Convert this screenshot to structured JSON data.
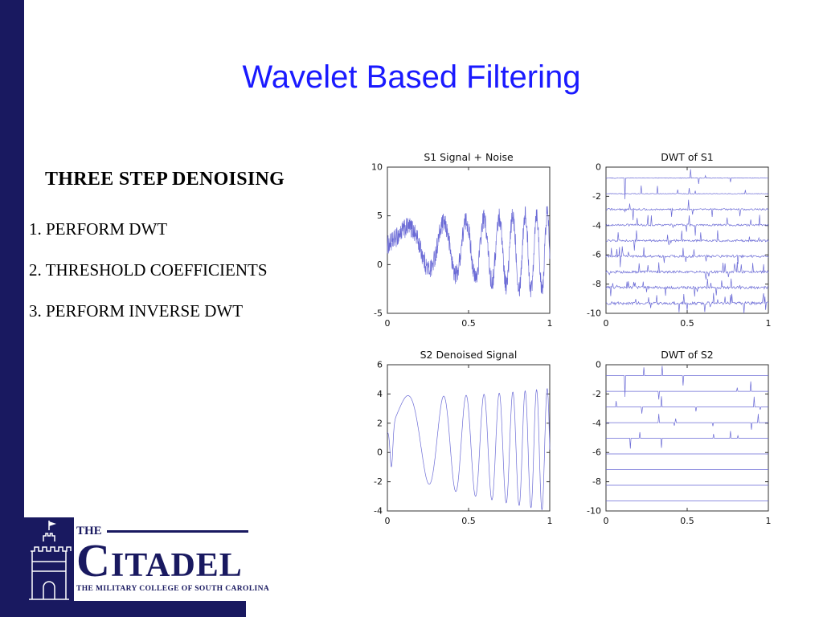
{
  "slide": {
    "title": "Wavelet Based Filtering"
  },
  "content": {
    "heading": "THREE STEP DENOISING",
    "steps": [
      "1. PERFORM  DWT",
      "2. THRESHOLD COEFFICIENTS",
      "3. PERFORM INVERSE DWT"
    ]
  },
  "logo": {
    "the": "THE",
    "name_initial": "C",
    "name_rest": "ITADEL",
    "tagline": "THE MILITARY COLLEGE OF SOUTH CAROLINA"
  },
  "colors": {
    "title_blue": "#1a1aff",
    "navy": "#191960",
    "plot_line": "#6b6bd6",
    "axis": "#333333"
  },
  "chart_data": [
    {
      "id": "s1-signal-noise",
      "type": "line",
      "title": "S1  Signal + Noise",
      "xlim": [
        0,
        1
      ],
      "ylim": [
        -5,
        10
      ],
      "xticks": [
        0,
        0.5,
        1
      ],
      "yticks": [
        10,
        5,
        0,
        -5
      ],
      "signal": "noisy_chirp",
      "description": "Chirp signal (frequency rising from ~1 Hz to ~16 Hz, amplitude growing from ~1.6 to ~4, offset ~2) plus additive noise of ~±1"
    },
    {
      "id": "dwt-s1",
      "type": "line",
      "title": "DWT of S1",
      "xlim": [
        0,
        1
      ],
      "ylim": [
        -10,
        0
      ],
      "xticks": [
        0,
        0.5,
        1
      ],
      "yticks": [
        0,
        -2,
        -4,
        -6,
        -8,
        -10
      ],
      "signal": "dwt_noisy",
      "levels": 9,
      "description": "Nine stacked DWT coefficient traces (levels spaced ~1.07 apart from -0.75 to -9.3); noisy baselines with sparse spikes, large spike near x=0.12 on top trace"
    },
    {
      "id": "s2-denoised",
      "type": "line",
      "title": "S2 Denoised  Signal",
      "xlim": [
        0,
        1
      ],
      "ylim": [
        -4,
        6
      ],
      "xticks": [
        0,
        0.5,
        1
      ],
      "yticks": [
        6,
        4,
        2,
        0,
        -2,
        -4
      ],
      "signal": "clean_chirp",
      "description": "Smooth denoised chirp, small negative transient near x=0.03, amplitude ~3-4, frequency increasing left to right"
    },
    {
      "id": "dwt-s2",
      "type": "line",
      "title": "DWT of S2",
      "xlim": [
        0,
        1
      ],
      "ylim": [
        -10,
        0
      ],
      "xticks": [
        0,
        0.5,
        1
      ],
      "yticks": [
        0,
        -2,
        -4,
        -6,
        -8,
        -10
      ],
      "signal": "dwt_denoised",
      "levels": 9,
      "description": "Nine stacked DWT coefficient traces after thresholding; only upper levels keep sparse spikes, lower levels are flat lines"
    }
  ]
}
